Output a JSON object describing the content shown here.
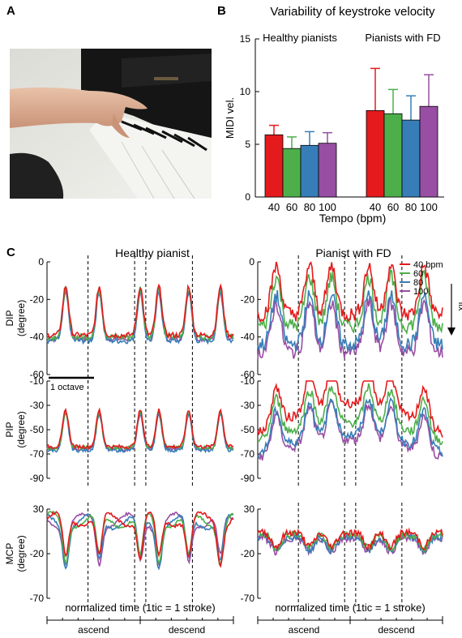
{
  "panel_letters": [
    "A",
    "B",
    "C"
  ],
  "colors": {
    "red": "#e41a1c",
    "green": "#4daf4a",
    "blue": "#377eb8",
    "purple": "#984ea3"
  },
  "photo": {
    "description_icon": "piano-hand-photo"
  },
  "chart_data": [
    {
      "type": "bar",
      "title": "Variability of keystroke velocity",
      "group_labels": [
        "Healthy pianists",
        "Pianists with FD"
      ],
      "categories": [
        "40",
        "60",
        "80",
        "100"
      ],
      "ylabel": "MIDI vel.",
      "xlabel": "Tempo (bpm)",
      "ylim": [
        0,
        15
      ],
      "yticks": [
        0,
        5,
        10,
        15
      ],
      "groups": [
        {
          "name": "Healthy pianists",
          "values": [
            5.9,
            4.6,
            4.9,
            5.1
          ],
          "errors": [
            0.9,
            1.1,
            1.3,
            1.0
          ]
        },
        {
          "name": "Pianists with FD",
          "values": [
            8.2,
            7.9,
            7.3,
            8.6
          ],
          "errors": [
            4.0,
            2.3,
            2.3,
            3.0
          ]
        }
      ],
      "series_colors": [
        "#e41a1c",
        "#4daf4a",
        "#377eb8",
        "#984ea3"
      ]
    },
    {
      "type": "line",
      "column_titles": [
        "Healthy pianist",
        "Pianist with FD"
      ],
      "legend": {
        "entries": [
          "40 bpm",
          "60",
          "80",
          "100"
        ],
        "placement": "top-right"
      },
      "flx_label": "flx",
      "scale_bar_label": "1 octave",
      "xlabel": "normalized time (1tic = 1 stroke)",
      "phases": [
        "ascend",
        "descend"
      ],
      "rows": [
        {
          "ylabel": "DIP",
          "yunit": "(degree)",
          "ylim": [
            -60,
            0
          ],
          "yticks": [
            -60,
            -40,
            -20,
            0
          ]
        },
        {
          "ylabel": "PIP",
          "yunit": "(degree)",
          "ylim": [
            -90,
            -10
          ],
          "yticks": [
            -90,
            -70,
            -50,
            -30,
            -10
          ]
        },
        {
          "ylabel": "MCP",
          "yunit": "(degree)",
          "ylim": [
            -70,
            30
          ],
          "yticks": [
            -70,
            -20,
            30
          ]
        }
      ]
    }
  ]
}
